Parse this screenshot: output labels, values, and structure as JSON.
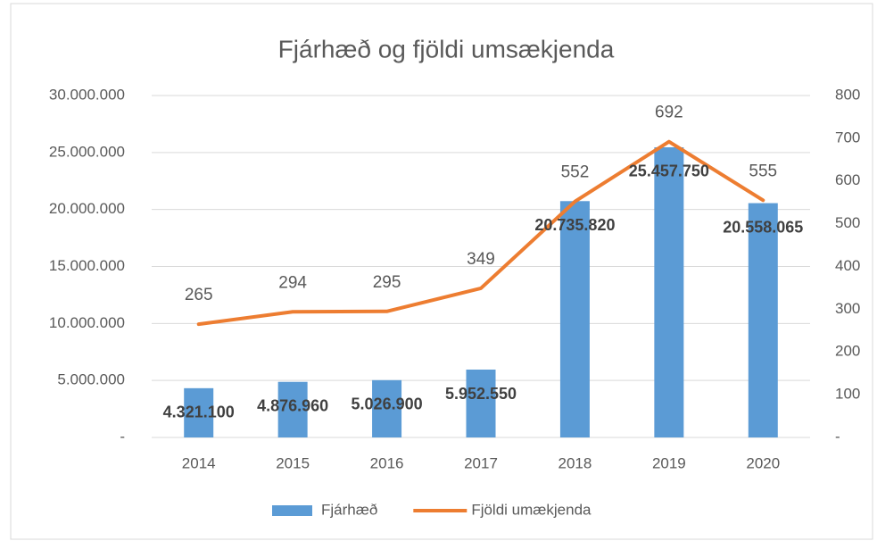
{
  "chart_data": {
    "type": "combo",
    "title": "Fjárhæð og fjöldi umsækjenda",
    "categories": [
      "2014",
      "2015",
      "2016",
      "2017",
      "2018",
      "2019",
      "2020"
    ],
    "series": [
      {
        "name": "Fjárhæð",
        "type": "bar",
        "color": "#5b9bd5",
        "values": [
          4321100,
          4876960,
          5026900,
          5952550,
          20735820,
          25457750,
          20558065
        ],
        "value_labels": [
          "4.321.100",
          "4.876.960",
          "5.026.900",
          "5.952.550",
          "20.735.820",
          "25.457.750",
          "20.558.065"
        ]
      },
      {
        "name": "Fjöldi umækjenda",
        "type": "line",
        "axis": "y2",
        "color": "#ed7d31",
        "values": [
          265,
          294,
          295,
          349,
          552,
          692,
          555
        ]
      }
    ],
    "ylim": [
      0,
      30000000
    ],
    "yticks": [
      {
        "value": 0,
        "label": "-"
      },
      {
        "value": 5000000,
        "label": "5.000.000"
      },
      {
        "value": 10000000,
        "label": "10.000.000"
      },
      {
        "value": 15000000,
        "label": "15.000.000"
      },
      {
        "value": 20000000,
        "label": "20.000.000"
      },
      {
        "value": 25000000,
        "label": "25.000.000"
      },
      {
        "value": 30000000,
        "label": "30.000.000"
      }
    ],
    "y2lim": [
      0,
      800
    ],
    "y2ticks": [
      {
        "value": 0,
        "label": "-"
      },
      100,
      200,
      300,
      400,
      500,
      600,
      700,
      800
    ],
    "grid": true,
    "legend": "bottom"
  }
}
